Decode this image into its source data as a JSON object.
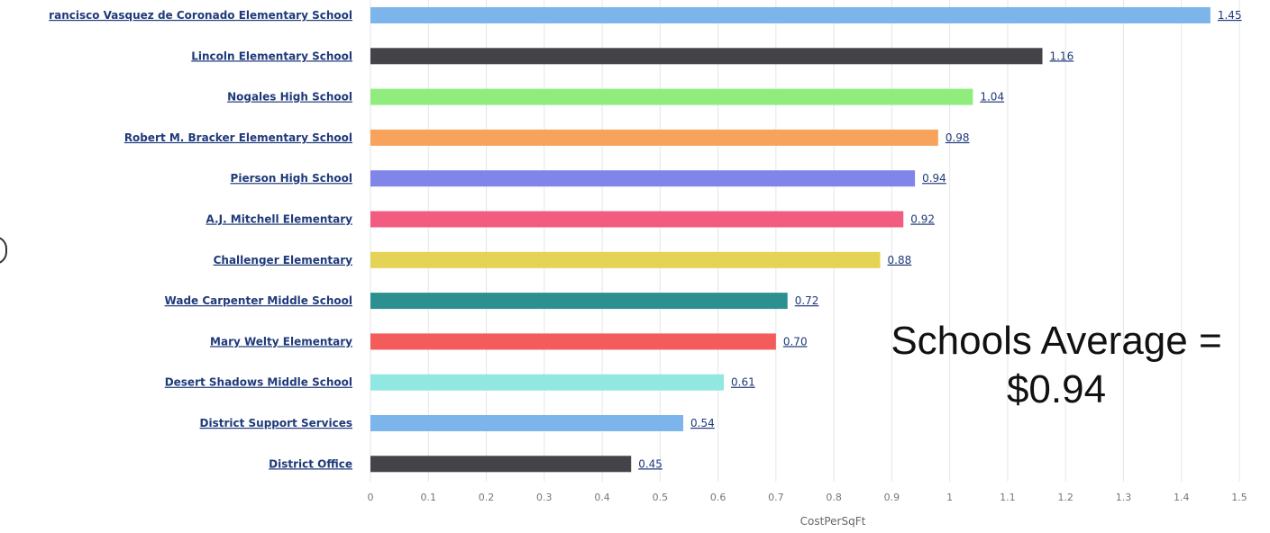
{
  "chart_data": {
    "type": "bar",
    "orientation": "horizontal",
    "categories": [
      "rancisco Vasquez de Coronado Elementary School",
      "Lincoln Elementary School",
      "Nogales High School",
      "Robert M. Bracker Elementary School",
      "Pierson High School",
      "A.J. Mitchell Elementary",
      "Challenger Elementary",
      "Wade Carpenter Middle School",
      "Mary Welty Elementary",
      "Desert Shadows Middle School",
      "District Support Services",
      "District Office"
    ],
    "values": [
      1.45,
      1.16,
      1.04,
      0.98,
      0.94,
      0.92,
      0.88,
      0.72,
      0.7,
      0.61,
      0.54,
      0.45
    ],
    "value_labels": [
      "1.45",
      "1.16",
      "1.04",
      "0.98",
      "0.94",
      "0.92",
      "0.88",
      "0.72",
      "0.70",
      "0.61",
      "0.54",
      "0.45"
    ],
    "colors": [
      "#7cb5ec",
      "#434348",
      "#90ed7d",
      "#f7a35c",
      "#8085e9",
      "#f15c80",
      "#e4d354",
      "#2b908f",
      "#f45b5b",
      "#91e8e1",
      "#7cb5ec",
      "#434348"
    ],
    "title": "",
    "xlabel": "CostPerSqFt",
    "ylabel": "",
    "xlim": [
      0,
      1.5
    ],
    "ticks": [
      "0",
      "0.1",
      "0.2",
      "0.3",
      "0.4",
      "0.5",
      "0.6",
      "0.7",
      "0.8",
      "0.9",
      "1",
      "1.1",
      "1.2",
      "1.3",
      "1.4",
      "1.5"
    ],
    "grid": true,
    "legend": "none"
  },
  "annotation": {
    "line1": "Schools Average =",
    "line2": "$0.94"
  }
}
